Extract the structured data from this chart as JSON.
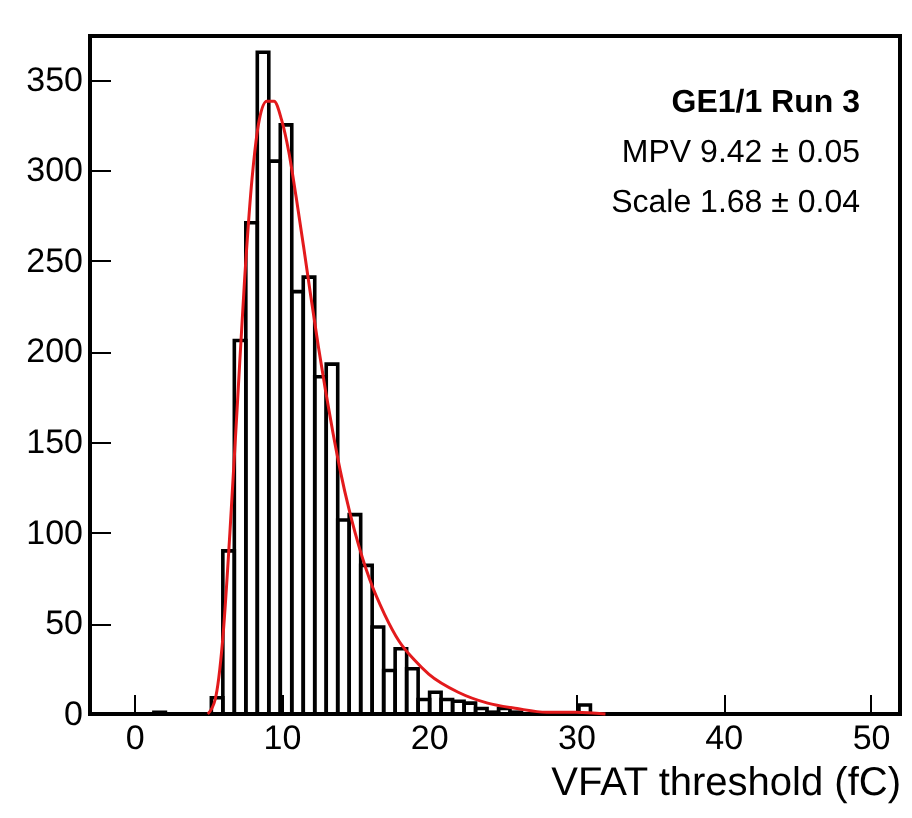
{
  "chart_data": {
    "type": "histogram",
    "xlabel": "VFAT threshold (fC)",
    "annotations": [
      "GE1/1 Run 3",
      "MPV 9.42 ± 0.05",
      "Scale 1.68 ± 0.04"
    ],
    "xlim": [
      -3,
      52
    ],
    "xticks": [
      0,
      10,
      20,
      30,
      40,
      50
    ],
    "ylim": [
      0,
      374
    ],
    "yticks": [
      0,
      50,
      100,
      150,
      200,
      250,
      300,
      350
    ],
    "grid": false,
    "series": [
      {
        "color": "#000000",
        "bins": [
          1.34,
          2.12,
          2.9,
          3.68,
          4.46,
          5.24,
          6.02,
          6.8,
          7.58,
          8.36,
          9.14,
          9.92,
          10.7,
          11.48,
          12.26,
          13.04,
          13.82,
          14.6,
          15.38,
          16.16,
          16.94,
          17.72,
          18.5,
          19.28,
          20.06,
          20.84,
          21.62,
          22.4,
          23.18,
          23.96,
          24.74,
          25.52,
          26.3,
          27.08,
          27.86,
          28.64,
          29.42,
          30.2,
          30.98
        ],
        "values": [
          1,
          0,
          0,
          0,
          0,
          9,
          90,
          206,
          271,
          365,
          305,
          325,
          233,
          241,
          186,
          193,
          107,
          110,
          82,
          48,
          24,
          36,
          25,
          8,
          12,
          8,
          7,
          6,
          3,
          1,
          3,
          1,
          0,
          0,
          0,
          0,
          0,
          5
        ]
      },
      {
        "type": "line",
        "color": "#e31a1c",
        "x": [
          5,
          5.5,
          6,
          6.5,
          7,
          7.5,
          8,
          8.5,
          9,
          9.5,
          10,
          10.5,
          11,
          11.5,
          12,
          12.5,
          13,
          13.5,
          14,
          15,
          16,
          17,
          18,
          19,
          20,
          22,
          24,
          26,
          28,
          30,
          32
        ],
        "values": [
          0,
          8,
          40,
          100,
          170,
          240,
          295,
          328,
          338,
          338,
          328,
          310,
          285,
          258,
          230,
          203,
          178,
          155,
          134,
          100,
          74,
          55,
          40,
          30,
          22,
          12,
          6,
          3,
          1,
          1,
          0
        ]
      }
    ]
  }
}
